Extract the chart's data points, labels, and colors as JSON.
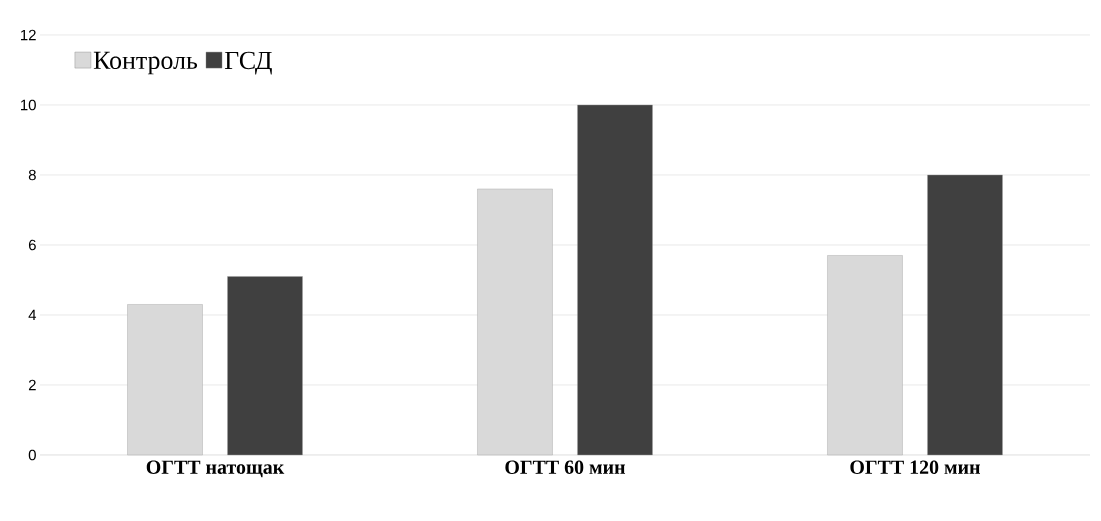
{
  "chart_data": {
    "type": "bar",
    "categories": [
      "ОГТТ натощак",
      "ОГТТ 60 мин",
      "ОГТТ 120 мин"
    ],
    "series": [
      {
        "name": "Контроль",
        "color": "#d9d9d9",
        "values": [
          4.3,
          7.6,
          5.7
        ]
      },
      {
        "name": "ГСД",
        "color": "#404040",
        "values": [
          5.1,
          10.0,
          8.0
        ]
      }
    ],
    "ylim": [
      0,
      12
    ],
    "yticks": [
      0,
      2,
      4,
      6,
      8,
      10,
      12
    ],
    "grid": "y",
    "legend": "top left"
  }
}
